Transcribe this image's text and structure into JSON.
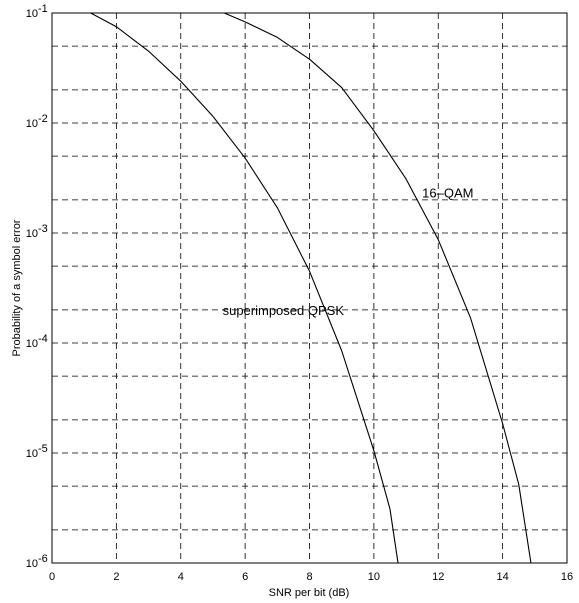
{
  "chart_data": {
    "type": "line",
    "title": "",
    "xlabel": "SNR per bit (dB)",
    "ylabel": "Probability of a symbol error",
    "xlim": [
      0,
      16
    ],
    "ylim": [
      1e-06,
      0.1
    ],
    "yscale": "log",
    "grid": true,
    "grid_style": "dashed",
    "x_ticks": [
      0,
      2,
      4,
      6,
      8,
      10,
      12,
      14,
      16
    ],
    "y_ticks": [
      {
        "base": "10",
        "exp": "-6",
        "value": 1e-06
      },
      {
        "base": "10",
        "exp": "-5",
        "value": 1e-05
      },
      {
        "base": "10",
        "exp": "-4",
        "value": 0.0001
      },
      {
        "base": "10",
        "exp": "-3",
        "value": 0.001
      },
      {
        "base": "10",
        "exp": "-2",
        "value": 0.01
      },
      {
        "base": "10",
        "exp": "-1",
        "value": 0.1
      }
    ],
    "y_minor_grid": [
      2,
      5
    ],
    "line_color": "#000000",
    "series": [
      {
        "x": [
          1.2,
          2,
          3,
          4,
          5,
          6,
          7,
          8,
          9,
          10,
          10.5,
          10.75
        ],
        "y": [
          0.1,
          0.075,
          0.045,
          0.024,
          0.0115,
          0.0048,
          0.0017,
          0.00045,
          8.5e-05,
          1.05e-05,
          3.1e-06,
          1e-06
        ]
      },
      {
        "x": [
          5.35,
          6,
          7,
          8,
          9,
          10,
          11,
          12,
          13,
          14,
          14.5,
          14.88
        ],
        "y": [
          0.1,
          0.083,
          0.06,
          0.038,
          0.021,
          0.0085,
          0.0031,
          0.00087,
          0.00017,
          1.85e-05,
          5.2e-06,
          1e-06
        ]
      }
    ],
    "annotations": [
      {
        "text": "superimposed QPSK",
        "x": 5.3,
        "y": 0.00018
      },
      {
        "text": "16–QAM",
        "x": 11.5,
        "y": 0.0021
      }
    ]
  }
}
